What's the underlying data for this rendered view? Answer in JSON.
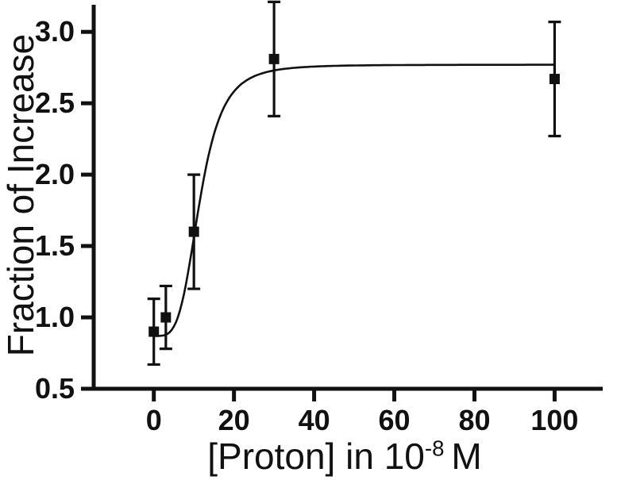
{
  "chart_data": {
    "type": "scatter",
    "ylabel": "Fraction of Increase",
    "xlabel": {
      "prefix": "[Proton] in 10",
      "superscript": "-8",
      "suffix": "M"
    },
    "x_ticks": [
      0,
      20,
      40,
      60,
      80,
      100
    ],
    "x_tick_labels": [
      "0",
      "20",
      "40",
      "60",
      "80",
      "100"
    ],
    "y_ticks": [
      0.5,
      1.0,
      1.5,
      2.0,
      2.5,
      3.0
    ],
    "y_tick_labels": [
      "0.5",
      "1.0",
      "1.5",
      "2.0",
      "2.5",
      "3.0"
    ],
    "xlim": [
      -15,
      112
    ],
    "ylim": [
      0.5,
      3.19
    ],
    "grid": false,
    "legend": null,
    "points": [
      {
        "x": 0,
        "y": 0.9,
        "err": 0.23
      },
      {
        "x": 3,
        "y": 1.0,
        "err": 0.22
      },
      {
        "x": 10,
        "y": 1.6,
        "err": 0.4
      },
      {
        "x": 30,
        "y": 2.81,
        "err": 0.4
      },
      {
        "x": 100,
        "y": 2.67,
        "err": 0.4
      }
    ],
    "fit_curve": {
      "model": "hill-sigmoid",
      "base": 0.87,
      "plateau": 2.77,
      "ec50": 11.5,
      "hill_n": 4,
      "x_start": 0,
      "x_end": 100
    },
    "colors": {
      "foreground": "#111111",
      "background": "#ffffff"
    }
  }
}
